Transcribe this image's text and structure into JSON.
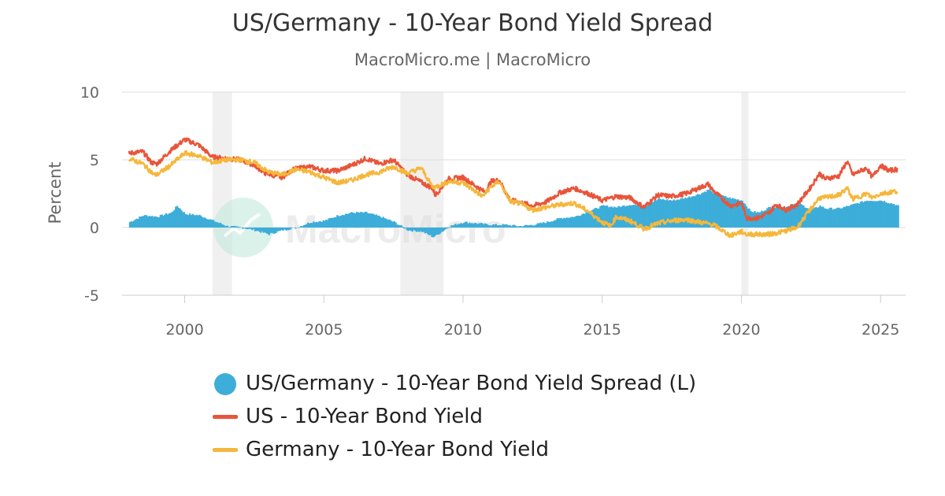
{
  "header": {
    "title": "US/Germany - 10-Year Bond Yield Spread",
    "subtitle": "MacroMicro.me | MacroMicro"
  },
  "watermark": {
    "text": "MacroMicro",
    "icon": "macromicro-logo-icon"
  },
  "legend": [
    {
      "label": "US/Germany - 10-Year Bond Yield Spread (L)",
      "symbol": "dot",
      "color": "#3dadd9"
    },
    {
      "label": "US - 10-Year Bond Yield",
      "symbol": "line",
      "color": "#e8553a"
    },
    {
      "label": "Germany - 10-Year Bond Yield",
      "symbol": "line",
      "color": "#f5b73b"
    }
  ],
  "chart_data": {
    "type": "line",
    "title": "US/Germany - 10-Year Bond Yield Spread",
    "ylabel": "Percent",
    "xlabel": "",
    "ylim": [
      -5,
      10
    ],
    "yticks": [
      10,
      5,
      0,
      -5
    ],
    "xlim": [
      1997.75,
      2025.9
    ],
    "xticks": [
      "2000",
      "2005",
      "2010",
      "2015",
      "2020",
      "2025"
    ],
    "grid": "horizontal",
    "legend_position": "bottom",
    "recession_bands": [
      [
        2001.0,
        2001.7
      ],
      [
        2007.75,
        2009.3
      ],
      [
        2020.0,
        2020.25
      ]
    ],
    "series": [
      {
        "name": "US - 10-Year Bond Yield",
        "type": "line",
        "color": "#e8553a",
        "points": [
          [
            1998.0,
            5.5
          ],
          [
            1998.5,
            5.6
          ],
          [
            1998.8,
            4.8
          ],
          [
            1999.0,
            4.7
          ],
          [
            1999.5,
            5.7
          ],
          [
            2000.0,
            6.5
          ],
          [
            2000.5,
            6.1
          ],
          [
            2001.0,
            5.2
          ],
          [
            2001.5,
            5.1
          ],
          [
            2002.0,
            5.0
          ],
          [
            2002.5,
            4.6
          ],
          [
            2002.9,
            4.0
          ],
          [
            2003.5,
            3.7
          ],
          [
            2003.9,
            4.3
          ],
          [
            2004.5,
            4.5
          ],
          [
            2005.0,
            4.2
          ],
          [
            2005.5,
            4.2
          ],
          [
            2006.0,
            4.6
          ],
          [
            2006.5,
            5.1
          ],
          [
            2007.0,
            4.7
          ],
          [
            2007.5,
            5.0
          ],
          [
            2008.0,
            3.9
          ],
          [
            2008.9,
            2.9
          ],
          [
            2009.0,
            2.4
          ],
          [
            2009.5,
            3.6
          ],
          [
            2010.0,
            3.7
          ],
          [
            2010.5,
            3.0
          ],
          [
            2010.8,
            2.6
          ],
          [
            2011.0,
            3.4
          ],
          [
            2011.3,
            3.5
          ],
          [
            2011.7,
            2.0
          ],
          [
            2012.0,
            1.9
          ],
          [
            2012.5,
            1.6
          ],
          [
            2013.0,
            1.9
          ],
          [
            2013.5,
            2.6
          ],
          [
            2014.0,
            2.9
          ],
          [
            2014.5,
            2.5
          ],
          [
            2015.0,
            2.0
          ],
          [
            2015.5,
            2.3
          ],
          [
            2016.0,
            2.2
          ],
          [
            2016.5,
            1.5
          ],
          [
            2017.0,
            2.4
          ],
          [
            2017.5,
            2.3
          ],
          [
            2018.0,
            2.5
          ],
          [
            2018.8,
            3.2
          ],
          [
            2019.0,
            2.7
          ],
          [
            2019.6,
            1.6
          ],
          [
            2020.0,
            1.8
          ],
          [
            2020.2,
            0.7
          ],
          [
            2020.6,
            0.7
          ],
          [
            2021.0,
            1.1
          ],
          [
            2021.25,
            1.7
          ],
          [
            2021.6,
            1.3
          ],
          [
            2022.0,
            1.7
          ],
          [
            2022.5,
            3.0
          ],
          [
            2022.8,
            4.0
          ],
          [
            2023.0,
            3.6
          ],
          [
            2023.5,
            3.8
          ],
          [
            2023.8,
            4.9
          ],
          [
            2024.0,
            3.9
          ],
          [
            2024.5,
            4.4
          ],
          [
            2024.7,
            3.7
          ],
          [
            2025.0,
            4.6
          ],
          [
            2025.3,
            4.2
          ],
          [
            2025.6,
            4.3
          ]
        ]
      },
      {
        "name": "Germany - 10-Year Bond Yield",
        "type": "line",
        "color": "#f5b73b",
        "points": [
          [
            1998.0,
            5.1
          ],
          [
            1998.5,
            4.7
          ],
          [
            1998.9,
            3.9
          ],
          [
            1999.0,
            3.9
          ],
          [
            1999.5,
            4.6
          ],
          [
            2000.0,
            5.5
          ],
          [
            2000.5,
            5.3
          ],
          [
            2001.0,
            4.8
          ],
          [
            2001.5,
            5.0
          ],
          [
            2002.0,
            5.0
          ],
          [
            2002.5,
            4.8
          ],
          [
            2003.0,
            4.1
          ],
          [
            2003.5,
            3.9
          ],
          [
            2004.0,
            4.3
          ],
          [
            2004.5,
            4.1
          ],
          [
            2005.0,
            3.7
          ],
          [
            2005.5,
            3.3
          ],
          [
            2006.0,
            3.5
          ],
          [
            2006.5,
            3.9
          ],
          [
            2007.0,
            4.1
          ],
          [
            2007.5,
            4.5
          ],
          [
            2008.0,
            4.0
          ],
          [
            2008.5,
            4.4
          ],
          [
            2008.9,
            3.0
          ],
          [
            2009.0,
            3.0
          ],
          [
            2009.5,
            3.4
          ],
          [
            2010.0,
            3.3
          ],
          [
            2010.5,
            2.6
          ],
          [
            2010.7,
            2.3
          ],
          [
            2011.0,
            3.0
          ],
          [
            2011.3,
            3.4
          ],
          [
            2011.7,
            1.9
          ],
          [
            2012.0,
            1.8
          ],
          [
            2012.5,
            1.3
          ],
          [
            2013.0,
            1.5
          ],
          [
            2013.5,
            1.7
          ],
          [
            2014.0,
            1.8
          ],
          [
            2014.5,
            1.2
          ],
          [
            2015.0,
            0.4
          ],
          [
            2015.3,
            0.1
          ],
          [
            2015.5,
            0.8
          ],
          [
            2016.0,
            0.5
          ],
          [
            2016.5,
            -0.1
          ],
          [
            2017.0,
            0.3
          ],
          [
            2017.5,
            0.5
          ],
          [
            2018.0,
            0.6
          ],
          [
            2018.5,
            0.4
          ],
          [
            2019.0,
            0.2
          ],
          [
            2019.6,
            -0.6
          ],
          [
            2020.0,
            -0.3
          ],
          [
            2020.2,
            -0.5
          ],
          [
            2021.0,
            -0.5
          ],
          [
            2021.5,
            -0.3
          ],
          [
            2022.0,
            0.0
          ],
          [
            2022.5,
            1.4
          ],
          [
            2022.8,
            2.2
          ],
          [
            2023.0,
            2.2
          ],
          [
            2023.5,
            2.4
          ],
          [
            2023.8,
            2.9
          ],
          [
            2024.0,
            2.1
          ],
          [
            2024.5,
            2.5
          ],
          [
            2024.7,
            2.2
          ],
          [
            2025.0,
            2.5
          ],
          [
            2025.3,
            2.6
          ],
          [
            2025.6,
            2.7
          ]
        ]
      },
      {
        "name": "US/Germany - 10-Year Bond Yield Spread (L)",
        "type": "area",
        "color": "#3dadd9",
        "points": [
          [
            1998.0,
            0.4
          ],
          [
            1998.5,
            0.9
          ],
          [
            1999.0,
            0.8
          ],
          [
            1999.5,
            1.1
          ],
          [
            1999.7,
            1.6
          ],
          [
            2000.0,
            1.0
          ],
          [
            2000.5,
            0.9
          ],
          [
            2001.0,
            0.5
          ],
          [
            2001.5,
            0.1
          ],
          [
            2002.0,
            0.0
          ],
          [
            2002.5,
            -0.2
          ],
          [
            2003.0,
            -0.5
          ],
          [
            2003.5,
            -0.2
          ],
          [
            2004.0,
            0.0
          ],
          [
            2004.5,
            0.4
          ],
          [
            2005.0,
            0.5
          ],
          [
            2005.5,
            0.9
          ],
          [
            2006.0,
            1.1
          ],
          [
            2006.5,
            1.1
          ],
          [
            2007.0,
            0.8
          ],
          [
            2007.5,
            0.4
          ],
          [
            2008.0,
            -0.2
          ],
          [
            2008.5,
            -0.3
          ],
          [
            2008.9,
            -0.7
          ],
          [
            2009.0,
            -0.6
          ],
          [
            2009.5,
            0.1
          ],
          [
            2010.0,
            0.4
          ],
          [
            2010.5,
            0.3
          ],
          [
            2011.0,
            0.2
          ],
          [
            2011.5,
            0.2
          ],
          [
            2012.0,
            0.1
          ],
          [
            2012.5,
            0.2
          ],
          [
            2013.0,
            0.4
          ],
          [
            2013.5,
            0.7
          ],
          [
            2014.0,
            0.8
          ],
          [
            2014.5,
            1.2
          ],
          [
            2015.0,
            1.6
          ],
          [
            2015.5,
            1.5
          ],
          [
            2016.0,
            1.7
          ],
          [
            2016.5,
            1.6
          ],
          [
            2017.0,
            2.1
          ],
          [
            2017.5,
            2.0
          ],
          [
            2018.0,
            2.2
          ],
          [
            2018.5,
            2.5
          ],
          [
            2018.8,
            2.8
          ],
          [
            2019.0,
            2.5
          ],
          [
            2019.5,
            2.2
          ],
          [
            2020.0,
            2.0
          ],
          [
            2020.3,
            1.2
          ],
          [
            2020.6,
            1.1
          ],
          [
            2021.0,
            1.5
          ],
          [
            2021.5,
            1.5
          ],
          [
            2022.0,
            1.8
          ],
          [
            2022.5,
            1.3
          ],
          [
            2022.8,
            1.6
          ],
          [
            2023.0,
            1.4
          ],
          [
            2023.5,
            1.4
          ],
          [
            2024.0,
            1.7
          ],
          [
            2024.5,
            2.0
          ],
          [
            2025.0,
            2.0
          ],
          [
            2025.5,
            1.7
          ],
          [
            2025.6,
            1.6
          ]
        ]
      }
    ]
  }
}
